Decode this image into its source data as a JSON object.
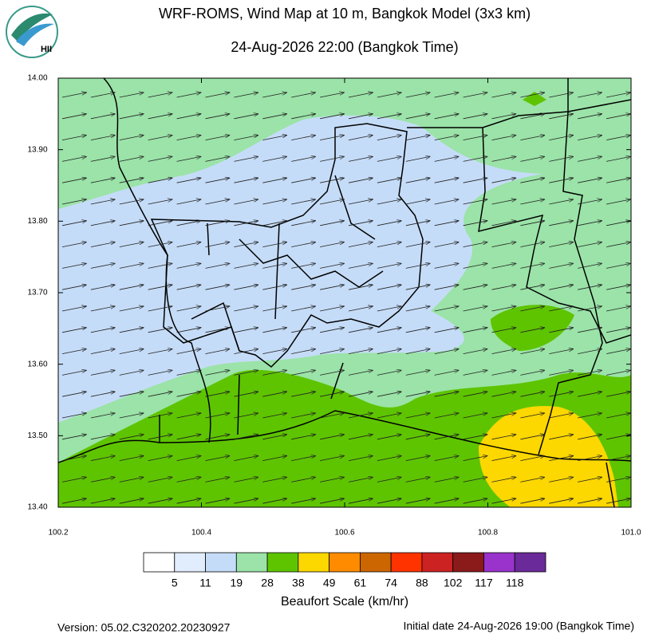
{
  "header": {
    "title": "WRF-ROMS, Wind Map at 10 m, Bangkok Model (3x3 km)",
    "subtitle": "24-Aug-2026 22:00 (Bangkok Time)",
    "logo": "HII"
  },
  "map": {
    "yticks": [
      "14.00",
      "13.90",
      "13.80",
      "13.70",
      "13.60",
      "13.50",
      "13.40"
    ],
    "xticks": [
      "100.2",
      "100.4",
      "100.6",
      "100.8",
      "101.0"
    ]
  },
  "legend": {
    "title": "Beaufort Scale (km/hr)",
    "colors": [
      "#ffffff",
      "#e1edfd",
      "#c5dcf8",
      "#9be3a8",
      "#5ec400",
      "#fcd700",
      "#ff8c00",
      "#cc6600",
      "#ff3300",
      "#cc2222",
      "#8b1a1a",
      "#9933cc",
      "#6a2a9a"
    ],
    "labels": [
      "5",
      "11",
      "19",
      "28",
      "38",
      "49",
      "61",
      "74",
      "88",
      "102",
      "117",
      "118"
    ]
  },
  "footer": {
    "version": "Version: 05.02.C320202.20230927",
    "initial_date": "Initial date 24-Aug-2026 19:00 (Bangkok Time)"
  }
}
